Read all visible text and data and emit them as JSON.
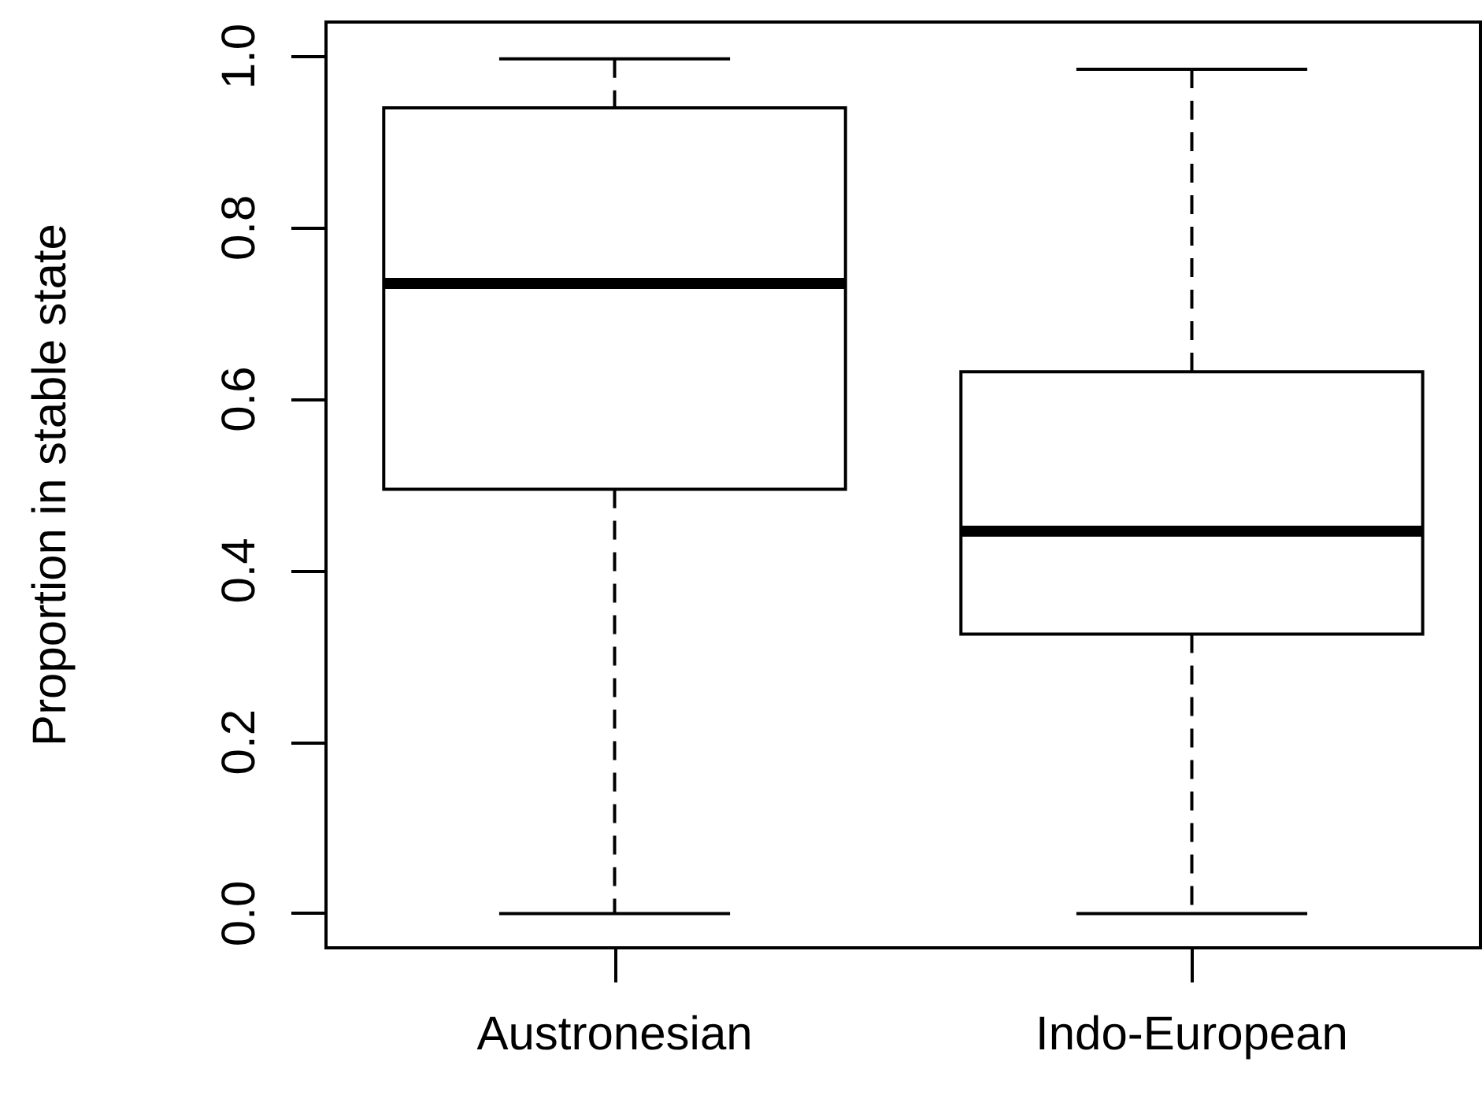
{
  "chart_data": {
    "type": "box",
    "ylabel": "Proportion in stable state",
    "categories": [
      "Austronesian",
      "Indo-European"
    ],
    "boxes": [
      {
        "low": 0.0,
        "q1": 0.495,
        "median": 0.735,
        "q3": 0.94,
        "high": 0.997
      },
      {
        "low": 0.0,
        "q1": 0.326,
        "median": 0.446,
        "q3": 0.632,
        "high": 0.985
      }
    ],
    "color": "#000000",
    "ylim": [
      -0.04,
      1.04
    ],
    "yticks": [
      {
        "value": 0,
        "label": "0.0"
      },
      0.2,
      0.4,
      0.6,
      0.8,
      {
        "value": 1,
        "label": "1.0"
      }
    ],
    "grid": false
  }
}
